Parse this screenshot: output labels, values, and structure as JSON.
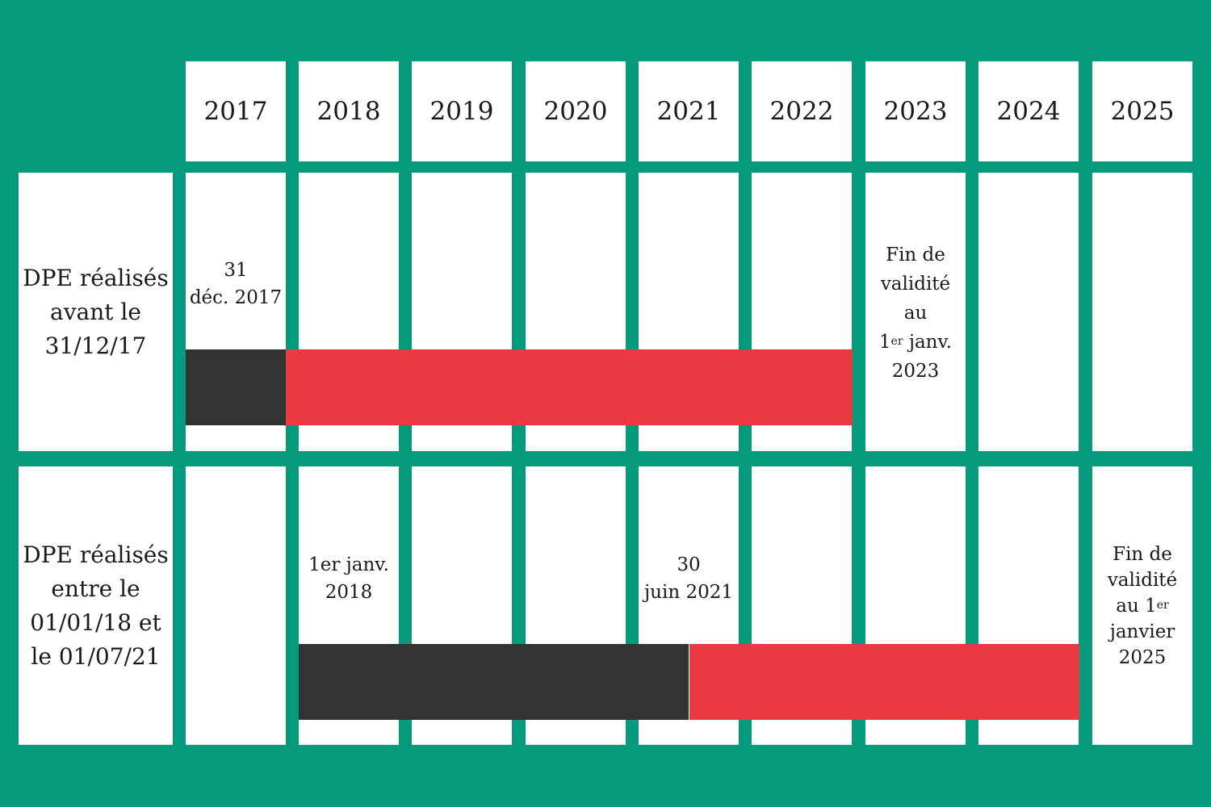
{
  "years": [
    "2017",
    "2018",
    "2019",
    "2020",
    "2021",
    "2022",
    "2023",
    "2024",
    "2025"
  ],
  "rows": [
    {
      "label_lines": [
        "DPE réalisés",
        "avant le",
        "31/12/17"
      ],
      "start_note": [
        "31",
        "déc. 2017"
      ],
      "end_note": {
        "lines": [
          "Fin de",
          "validité",
          "au"
        ],
        "ordinal_num": "1",
        "ordinal_sup": "er",
        "ordinal_rest": " janv.",
        "year": "2023"
      },
      "segments": [
        {
          "kind": "period",
          "color": "#333333",
          "from": "2017-01-01",
          "to": "2017-12-31"
        },
        {
          "kind": "validity",
          "color": "#e93a42",
          "from": "2018-01-01",
          "to": "2022-12-31"
        }
      ]
    },
    {
      "label_lines": [
        "DPE réalisés",
        "entre le",
        "01/01/18 et",
        "le 01/07/21"
      ],
      "start_note": [
        "1er janv.",
        "2018"
      ],
      "mid_note": [
        "30",
        "juin 2021"
      ],
      "end_note": {
        "lines": [
          "Fin de",
          "validité"
        ],
        "ordinal_num": "au 1",
        "ordinal_sup": "er",
        "ordinal_rest": "",
        "after": [
          "janvier",
          "2025"
        ]
      },
      "segments": [
        {
          "kind": "period",
          "color": "#333333",
          "from": "2018-01-01",
          "to": "2021-06-30"
        },
        {
          "kind": "validity",
          "color": "#e93a42",
          "from": "2021-07-01",
          "to": "2024-12-31"
        }
      ]
    }
  ],
  "colors": {
    "background": "#039b7c",
    "cell": "#ffffff",
    "period": "#333333",
    "validity": "#e93a42"
  }
}
